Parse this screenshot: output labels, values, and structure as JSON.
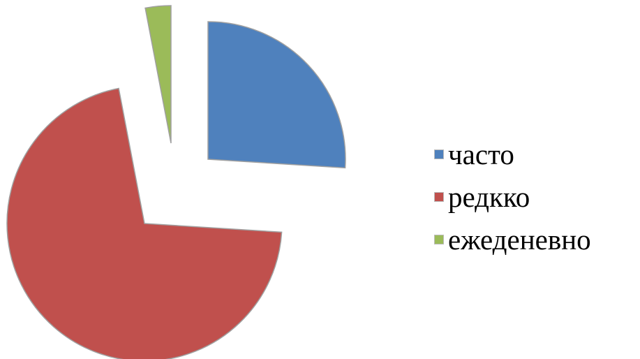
{
  "chart_data": {
    "type": "pie",
    "exploded": true,
    "legend_position": "right",
    "categories": [
      "часто",
      "редкко",
      "ежеденевно"
    ],
    "values": [
      26,
      71,
      3
    ],
    "colors": [
      "#4F81BD",
      "#C0504D",
      "#9BBB59"
    ]
  }
}
